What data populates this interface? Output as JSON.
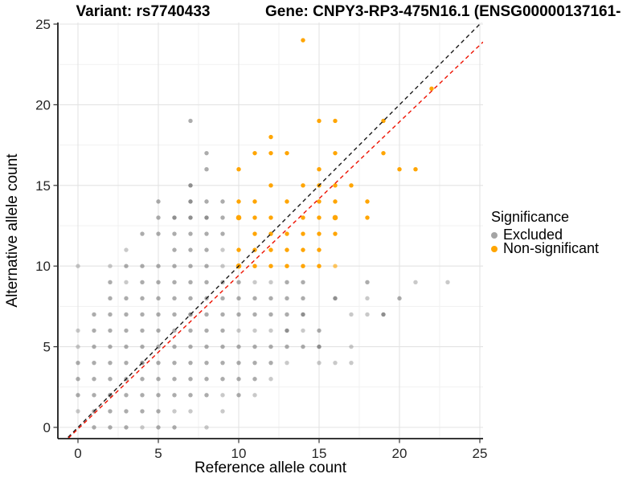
{
  "figure": {
    "title_left": "Variant: rs7740433",
    "title_right": "Gene: CNPY3-RP3-475N16.1 (ENSG00000137161-"
  },
  "chart_data": {
    "type": "scatter",
    "title": "Variant: rs7740433 | Gene: CNPY3-RP3-475N16.1 (ENSG00000137161-",
    "xlabel": "Reference allele count",
    "ylabel": "Alternative allele count",
    "xlim": [
      -1.25,
      25.2
    ],
    "ylim": [
      -0.7,
      25.1
    ],
    "x_ticks": [
      0,
      5,
      10,
      15,
      20,
      25
    ],
    "y_ticks": [
      0,
      5,
      10,
      15,
      20,
      25
    ],
    "minor_grid_step": 2.5,
    "grid": true,
    "legend": {
      "title": "Significance",
      "position": "right",
      "items": [
        {
          "label": "Excluded",
          "color": "#a4a4a4"
        },
        {
          "label": "Non-significant",
          "color": "#ffa500"
        }
      ]
    },
    "reference_lines": [
      {
        "name": "identity-line",
        "slope": 1,
        "intercept": 0,
        "color": "#1a1a1a",
        "style": "dashed"
      },
      {
        "name": "fitted-ratio-line",
        "slope": 0.952,
        "intercept": -0.1,
        "color": "#ee1100",
        "style": "dashed"
      }
    ],
    "series": [
      {
        "name": "Excluded",
        "color": "#7f7f7f",
        "default_opacity": 0.65,
        "points": [
          [
            1,
            0
          ],
          [
            2,
            0
          ],
          [
            3,
            0
          ],
          [
            4,
            0,
            0.42
          ],
          [
            5,
            0
          ],
          [
            6,
            0
          ],
          [
            8,
            0,
            0.42
          ],
          [
            0,
            1,
            0.42
          ],
          [
            1,
            1
          ],
          [
            2,
            1
          ],
          [
            3,
            1
          ],
          [
            4,
            1
          ],
          [
            5,
            1
          ],
          [
            6,
            1,
            0.42
          ],
          [
            7,
            1,
            0.42
          ],
          [
            9,
            1,
            0.42
          ],
          [
            0,
            2
          ],
          [
            1,
            2
          ],
          [
            2,
            2,
            0.88
          ],
          [
            3,
            2
          ],
          [
            4,
            2
          ],
          [
            5,
            2
          ],
          [
            6,
            2
          ],
          [
            7,
            2
          ],
          [
            8,
            2
          ],
          [
            9,
            2,
            0.42
          ],
          [
            10,
            2
          ],
          [
            11,
            2,
            0.42
          ],
          [
            0,
            3
          ],
          [
            1,
            3
          ],
          [
            2,
            3
          ],
          [
            3,
            3
          ],
          [
            4,
            3
          ],
          [
            5,
            3
          ],
          [
            6,
            3
          ],
          [
            7,
            3
          ],
          [
            8,
            3
          ],
          [
            9,
            3
          ],
          [
            10,
            3
          ],
          [
            11,
            3
          ],
          [
            12,
            3,
            0.42
          ],
          [
            0,
            4
          ],
          [
            1,
            4
          ],
          [
            2,
            4
          ],
          [
            3,
            4
          ],
          [
            4,
            4,
            0.88
          ],
          [
            5,
            4
          ],
          [
            6,
            4
          ],
          [
            7,
            4
          ],
          [
            8,
            4
          ],
          [
            9,
            4
          ],
          [
            10,
            4
          ],
          [
            11,
            4
          ],
          [
            12,
            4
          ],
          [
            13,
            4,
            0.42
          ],
          [
            15,
            4,
            0.42
          ],
          [
            16,
            4,
            0.42
          ],
          [
            17,
            4,
            0.42
          ],
          [
            0,
            5,
            0.42
          ],
          [
            1,
            5
          ],
          [
            2,
            5
          ],
          [
            3,
            5
          ],
          [
            4,
            5
          ],
          [
            5,
            5
          ],
          [
            6,
            5
          ],
          [
            7,
            5
          ],
          [
            8,
            5
          ],
          [
            9,
            5
          ],
          [
            10,
            5
          ],
          [
            11,
            5
          ],
          [
            12,
            5
          ],
          [
            13,
            5
          ],
          [
            14,
            5
          ],
          [
            15,
            5,
            0.88
          ],
          [
            17,
            5,
            0.42
          ],
          [
            0,
            6,
            0.42
          ],
          [
            1,
            6
          ],
          [
            2,
            6
          ],
          [
            3,
            6
          ],
          [
            4,
            6
          ],
          [
            5,
            6
          ],
          [
            6,
            6
          ],
          [
            7,
            6
          ],
          [
            8,
            6
          ],
          [
            9,
            6
          ],
          [
            10,
            6,
            0.42
          ],
          [
            11,
            6,
            0.42
          ],
          [
            12,
            6,
            0.42
          ],
          [
            13,
            6,
            0.88
          ],
          [
            14,
            6,
            0.42
          ],
          [
            15,
            6
          ],
          [
            1,
            7
          ],
          [
            2,
            7
          ],
          [
            3,
            7
          ],
          [
            4,
            7
          ],
          [
            5,
            7
          ],
          [
            6,
            7
          ],
          [
            7,
            7,
            0.88
          ],
          [
            8,
            7
          ],
          [
            9,
            7
          ],
          [
            10,
            7
          ],
          [
            11,
            7
          ],
          [
            12,
            7
          ],
          [
            13,
            7
          ],
          [
            14,
            7,
            0.88
          ],
          [
            17,
            7,
            0.42
          ],
          [
            18,
            7,
            0.42
          ],
          [
            19,
            7,
            0.88
          ],
          [
            2,
            8
          ],
          [
            3,
            8
          ],
          [
            4,
            8
          ],
          [
            5,
            8
          ],
          [
            6,
            8
          ],
          [
            7,
            8
          ],
          [
            8,
            8
          ],
          [
            9,
            8
          ],
          [
            10,
            8
          ],
          [
            11,
            8
          ],
          [
            12,
            8
          ],
          [
            13,
            8
          ],
          [
            14,
            8
          ],
          [
            16,
            8,
            0.88
          ],
          [
            18,
            8,
            0.42
          ],
          [
            20,
            8
          ],
          [
            2,
            9
          ],
          [
            3,
            9,
            0.42
          ],
          [
            4,
            9
          ],
          [
            5,
            9
          ],
          [
            6,
            9
          ],
          [
            7,
            9
          ],
          [
            8,
            9
          ],
          [
            9,
            9
          ],
          [
            10,
            9
          ],
          [
            11,
            9,
            0.42
          ],
          [
            12,
            9,
            0.42
          ],
          [
            13,
            9
          ],
          [
            14,
            9
          ],
          [
            18,
            9
          ],
          [
            21,
            9,
            0.42
          ],
          [
            23,
            9,
            0.42
          ],
          [
            0,
            10,
            0.42
          ],
          [
            2,
            10,
            0.42
          ],
          [
            3,
            10
          ],
          [
            4,
            10
          ],
          [
            5,
            10
          ],
          [
            6,
            10
          ],
          [
            7,
            10
          ],
          [
            8,
            10
          ],
          [
            9,
            10,
            0.42
          ],
          [
            3,
            11,
            0.42
          ],
          [
            6,
            11
          ],
          [
            7,
            11
          ],
          [
            8,
            11
          ],
          [
            9,
            11,
            0.42
          ],
          [
            4,
            12
          ],
          [
            5,
            12
          ],
          [
            6,
            12
          ],
          [
            7,
            12
          ],
          [
            8,
            12
          ],
          [
            9,
            12
          ],
          [
            5,
            13
          ],
          [
            6,
            13,
            0.88
          ],
          [
            7,
            13,
            0.88
          ],
          [
            8,
            13,
            0.88
          ],
          [
            9,
            13
          ],
          [
            5,
            14
          ],
          [
            7,
            14,
            0.88
          ],
          [
            8,
            14
          ],
          [
            9,
            14
          ],
          [
            7,
            15,
            0.88
          ],
          [
            8,
            16
          ],
          [
            8,
            17
          ],
          [
            7,
            19
          ]
        ]
      },
      {
        "name": "Non-significant",
        "color": "#ffa500",
        "default_opacity": 1,
        "points": [
          [
            10,
            10,
            1,
            3.3
          ],
          [
            11,
            10
          ],
          [
            12,
            10
          ],
          [
            13,
            10
          ],
          [
            14,
            10
          ],
          [
            15,
            10
          ],
          [
            16,
            10,
            0.62
          ],
          [
            10,
            11
          ],
          [
            11,
            11
          ],
          [
            12,
            11
          ],
          [
            13,
            11
          ],
          [
            14,
            11
          ],
          [
            15,
            11
          ],
          [
            11,
            12
          ],
          [
            12,
            12
          ],
          [
            13,
            12
          ],
          [
            14,
            12
          ],
          [
            15,
            12
          ],
          [
            16,
            12
          ],
          [
            10,
            13,
            1,
            3.3
          ],
          [
            11,
            13
          ],
          [
            12,
            13
          ],
          [
            14,
            13
          ],
          [
            15,
            13
          ],
          [
            16,
            13,
            1,
            3.3
          ],
          [
            18,
            13
          ],
          [
            10,
            14
          ],
          [
            11,
            14
          ],
          [
            13,
            14
          ],
          [
            15,
            14
          ],
          [
            16,
            14
          ],
          [
            18,
            14
          ],
          [
            12,
            15
          ],
          [
            14,
            15
          ],
          [
            15,
            15
          ],
          [
            16,
            15
          ],
          [
            17,
            15
          ],
          [
            10,
            16
          ],
          [
            15,
            16
          ],
          [
            20,
            16
          ],
          [
            21,
            16
          ],
          [
            11,
            17
          ],
          [
            12,
            17
          ],
          [
            13,
            17
          ],
          [
            16,
            17
          ],
          [
            19,
            17
          ],
          [
            12,
            18
          ],
          [
            15,
            19
          ],
          [
            16,
            19
          ],
          [
            19,
            19
          ],
          [
            22,
            21
          ],
          [
            14,
            24
          ]
        ]
      }
    ]
  }
}
